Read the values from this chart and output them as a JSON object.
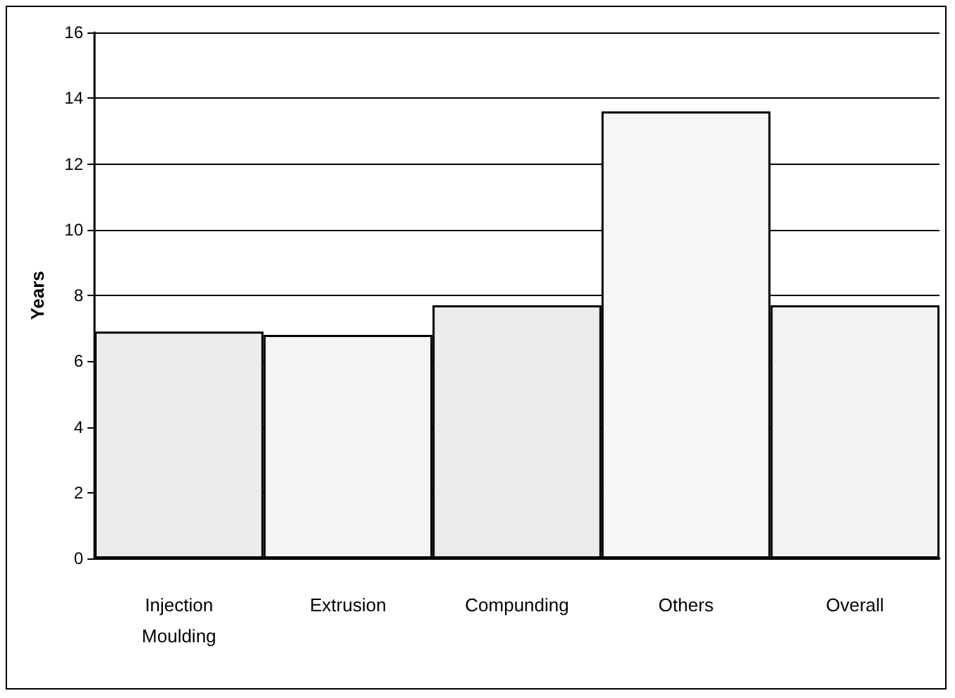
{
  "chart_data": {
    "type": "bar",
    "ylabel": "Years",
    "categories": [
      "Injection\nMoulding",
      "Extrusion",
      "Compunding",
      "Others",
      "Overall"
    ],
    "values": [
      6.9,
      6.8,
      7.7,
      13.6,
      7.7
    ],
    "colors": [
      "#ececec",
      "#f4f4f4",
      "#ececec",
      "#f6f6f6",
      "#f2f2f2"
    ],
    "ylim": [
      0,
      16
    ],
    "yticks": [
      0,
      2,
      4,
      6,
      8,
      10,
      12,
      14,
      16
    ],
    "grid": "y"
  }
}
